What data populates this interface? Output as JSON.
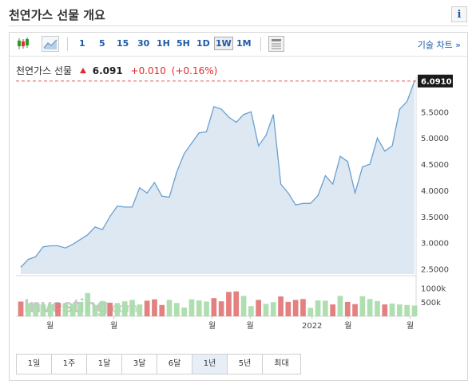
{
  "page": {
    "title": "천연가스 선물 개요",
    "info_label": "i"
  },
  "toolbar": {
    "intervals": [
      "1",
      "5",
      "15",
      "30",
      "1H",
      "5H",
      "1D",
      "1W",
      "1M"
    ],
    "active_interval": "1W",
    "advanced_link": "기술 차트 »",
    "icons": [
      "candlestick-icon",
      "area-chart-icon",
      "table-icon"
    ]
  },
  "quote": {
    "name": "천연가스 선물",
    "price": "6.091",
    "change": "+0.010",
    "change_pct": "(+0.16%)",
    "direction": "up"
  },
  "range": {
    "buttons": [
      "1일",
      "1주",
      "1달",
      "3달",
      "6달",
      "1년",
      "5년",
      "최대"
    ],
    "active": "1년"
  },
  "watermark": {
    "brand": "Investing",
    "suffix": ".com"
  },
  "colors": {
    "area_fill": "#dde8f3",
    "line": "#6aa0cf",
    "up_bar": "#a6dba8",
    "down_bar": "#e07272",
    "last_price_line": "#e05050",
    "price_tag": "#1a1a1a"
  },
  "chart_data": {
    "type": "area",
    "price_axis": {
      "ticks": [
        "6.0910",
        "5.5000",
        "5.0000",
        "4.5000",
        "4.0000",
        "3.5000",
        "3.0000",
        "2.5000"
      ],
      "range": [
        2.4,
        6.1
      ],
      "last_price_label": "6.0910"
    },
    "volume_axis": {
      "ticks": [
        "1000k",
        "500k"
      ],
      "range": [
        0,
        1350
      ]
    },
    "x_labels": [
      "월",
      "월",
      "월",
      "월",
      "2022",
      "월",
      "월"
    ],
    "series": [
      {
        "kind": "price",
        "values": [
          2.53,
          2.68,
          2.73,
          2.92,
          2.94,
          2.94,
          2.9,
          2.97,
          3.06,
          3.15,
          3.3,
          3.25,
          3.5,
          3.7,
          3.68,
          3.68,
          4.05,
          3.95,
          4.15,
          3.89,
          3.87,
          4.35,
          4.7,
          4.9,
          5.1,
          5.12,
          5.6,
          5.55,
          5.4,
          5.3,
          5.45,
          5.5,
          4.85,
          5.05,
          5.45,
          4.12,
          3.95,
          3.72,
          3.75,
          3.75,
          3.9,
          4.28,
          4.12,
          4.65,
          4.55,
          3.95,
          4.45,
          4.5,
          5.0,
          4.75,
          4.85,
          5.55,
          5.7,
          6.09
        ]
      },
      {
        "kind": "volume",
        "values": [
          520,
          470,
          440,
          420,
          430,
          480,
          460,
          440,
          510,
          820,
          400,
          540,
          480,
          470,
          530,
          580,
          420,
          550,
          600,
          400,
          580,
          470,
          310,
          600,
          560,
          520,
          640,
          530,
          860,
          880,
          720,
          360,
          580,
          440,
          500,
          700,
          510,
          580,
          610,
          300,
          560,
          550,
          420,
          720,
          510,
          430,
          710,
          610,
          540,
          420,
          450,
          420,
          400,
          380
        ],
        "direction": [
          "d",
          "u",
          "u",
          "u",
          "u",
          "d",
          "u",
          "u",
          "u",
          "u",
          "u",
          "u",
          "d",
          "u",
          "u",
          "u",
          "u",
          "d",
          "d",
          "d",
          "u",
          "u",
          "u",
          "u",
          "u",
          "u",
          "d",
          "d",
          "d",
          "d",
          "u",
          "u",
          "d",
          "u",
          "u",
          "d",
          "d",
          "d",
          "d",
          "u",
          "u",
          "u",
          "d",
          "u",
          "d",
          "d",
          "u",
          "u",
          "u",
          "d",
          "u",
          "u",
          "u",
          "u"
        ]
      }
    ]
  }
}
